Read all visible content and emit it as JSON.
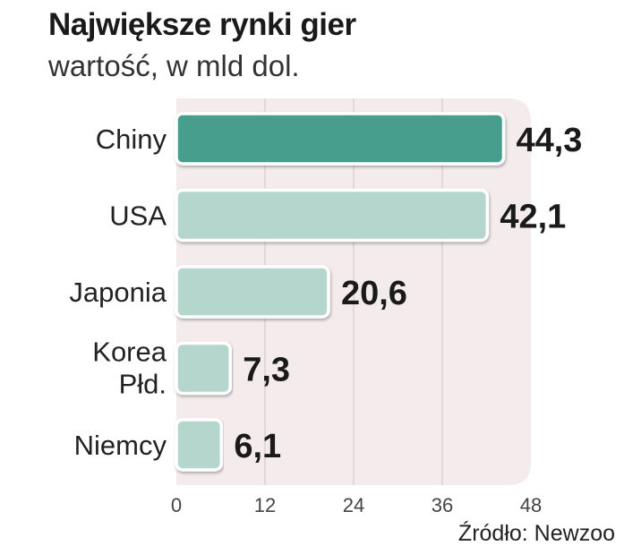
{
  "chart_data": {
    "type": "bar",
    "orientation": "horizontal",
    "title": "Największe rynki gier",
    "subtitle": "wartość, w mld dol.",
    "categories": [
      "Chiny",
      "USA",
      "Japonia",
      "Korea Płd.",
      "Niemcy"
    ],
    "category_lines": [
      [
        "Chiny"
      ],
      [
        "USA"
      ],
      [
        "Japonia"
      ],
      [
        "Korea",
        "Płd."
      ],
      [
        "Niemcy"
      ]
    ],
    "values": [
      44.3,
      42.1,
      20.6,
      7.3,
      6.1
    ],
    "value_labels": [
      "44,3",
      "42,1",
      "20,6",
      "7,3",
      "6,1"
    ],
    "xlim": [
      0,
      48
    ],
    "xticks": [
      0,
      12,
      24,
      36,
      48
    ],
    "grid": true,
    "highlight_index": 0,
    "colors": {
      "highlight": "#469e8c",
      "bar": "#b4d6cc",
      "panel": "#f4ecec",
      "grid": "#dcd2d2"
    },
    "source": "Źródło: Newzoo"
  }
}
